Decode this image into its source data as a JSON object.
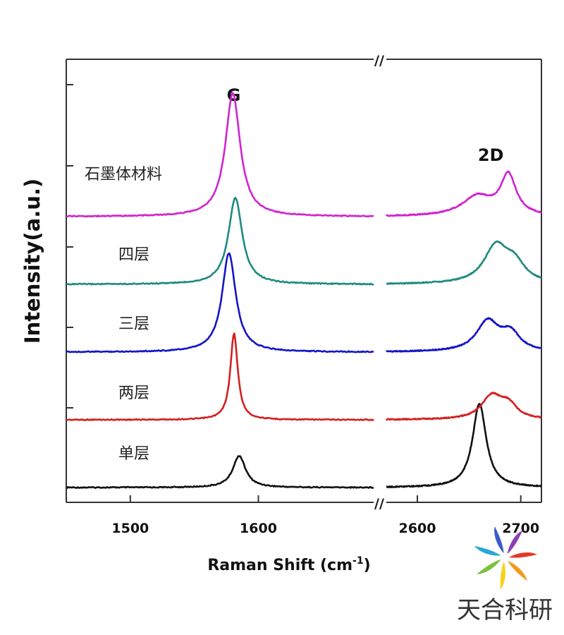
{
  "chart_data": {
    "type": "line",
    "title": "",
    "xlabel": "Raman Shift (cm",
    "xlabel_sup": "-1",
    "xlabel_close": ")",
    "ylabel": "Intensity(a.u.)",
    "axis_break_mark": "//",
    "segments": [
      {
        "name": "left",
        "xlim": [
          1450,
          1690
        ],
        "ticks": [
          1500,
          1600
        ],
        "tick_labels": [
          "1500",
          "1600"
        ]
      },
      {
        "name": "right",
        "xlim": [
          2570,
          2720
        ],
        "ticks": [
          2600,
          2700
        ],
        "tick_labels": [
          "2600",
          "2700"
        ]
      }
    ],
    "peak_labels": [
      {
        "text": "G",
        "x": 1584
      },
      {
        "text": "2D",
        "x": 2686
      }
    ],
    "series": [
      {
        "name": "单层",
        "label": "单层",
        "color": "#111111",
        "offset": 0,
        "left_peaks": [
          {
            "center": 1585,
            "width": 6,
            "height": 0.36
          }
        ],
        "right_peaks": [
          {
            "center": 2660,
            "width": 8,
            "height": 0.95
          }
        ]
      },
      {
        "name": "两层",
        "label": "两层",
        "color": "#d42020",
        "offset": 1,
        "left_peaks": [
          {
            "center": 1581,
            "width": 3.5,
            "height": 0.98
          }
        ],
        "right_peaks": [
          {
            "center": 2672,
            "width": 12,
            "height": 0.26
          },
          {
            "center": 2688,
            "width": 10,
            "height": 0.15
          }
        ]
      },
      {
        "name": "三层",
        "label": "三层",
        "color": "#1414c8",
        "offset": 2,
        "left_peaks": [
          {
            "center": 1577,
            "width": 6.5,
            "height": 1.12
          }
        ],
        "right_peaks": [
          {
            "center": 2668,
            "width": 13,
            "height": 0.34
          },
          {
            "center": 2690,
            "width": 11,
            "height": 0.2
          }
        ]
      },
      {
        "name": "四层",
        "label": "四层",
        "color": "#1f8a80",
        "offset": 3,
        "left_peaks": [
          {
            "center": 1582,
            "width": 6.5,
            "height": 0.98
          }
        ],
        "right_peaks": [
          {
            "center": 2676,
            "width": 14,
            "height": 0.42
          },
          {
            "center": 2694,
            "width": 12,
            "height": 0.2
          }
        ]
      },
      {
        "name": "石墨体材料",
        "label": "石墨体材料",
        "color": "#d024d0",
        "offset": 4,
        "left_peaks": [
          {
            "center": 1580,
            "width": 7,
            "height": 1.4
          }
        ],
        "right_peaks": [
          {
            "center": 2658,
            "width": 18,
            "height": 0.22
          },
          {
            "center": 2688,
            "width": 9,
            "height": 0.45
          }
        ]
      }
    ]
  },
  "watermark": {
    "text": "天合科研",
    "colors": [
      "#e23a2a",
      "#f29a1f",
      "#f6d21a",
      "#7cc23c",
      "#2aa7d9",
      "#3a5cc8",
      "#8b3fb0"
    ]
  }
}
